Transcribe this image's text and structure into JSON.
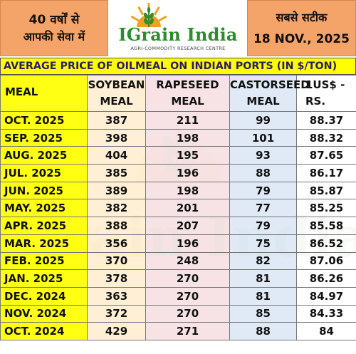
{
  "header": {
    "left_line1": "40 वर्षों से",
    "left_line2": "आपकी सेवा में",
    "logo_name": "IGrain India",
    "logo_tagline": "AGRI-COMMODITY RESEARCH CENTRE",
    "right_line1": "सबसे सटीक",
    "right_line2": "18 NOV., 2025"
  },
  "title": "AVERAGE PRICE OF OILMEAL ON INDIAN PORTS (IN $/TON)",
  "watermark_text": "IGrain India",
  "columns": [
    [
      "MEAL",
      ""
    ],
    [
      "SOYBEAN",
      "MEAL"
    ],
    [
      "RAPESEED",
      "MEAL"
    ],
    [
      "CASTORSEED",
      "MEAL"
    ],
    [
      "",
      "1US$ - RS."
    ]
  ],
  "rows": [
    [
      "OCT. 2025",
      "387",
      "211",
      "99",
      "88.37"
    ],
    [
      "SEP. 2025",
      "398",
      "198",
      "101",
      "88.32"
    ],
    [
      "AUG. 2025",
      "404",
      "195",
      "93",
      "87.65"
    ],
    [
      "JUL. 2025",
      "385",
      "196",
      "88",
      "86.17"
    ],
    [
      "JUN. 2025",
      "389",
      "198",
      "79",
      "85.87"
    ],
    [
      "MAY. 2025",
      "382",
      "201",
      "77",
      "85.25"
    ],
    [
      "APR. 2025",
      "388",
      "207",
      "79",
      "85.58"
    ],
    [
      "MAR. 2025",
      "356",
      "196",
      "75",
      "86.52"
    ],
    [
      "FEB. 2025",
      "370",
      "248",
      "82",
      "87.06"
    ],
    [
      "JAN. 2025",
      "378",
      "270",
      "81",
      "86.26"
    ],
    [
      "DEC. 2024",
      "363",
      "270",
      "81",
      "84.97"
    ],
    [
      "NOV. 2024",
      "372",
      "270",
      "85",
      "84.33"
    ],
    [
      "OCT. 2024",
      "429",
      "271",
      "88",
      "84"
    ]
  ],
  "colors": {
    "header_orange": "#f5a469",
    "title_yellow": "#ffff00",
    "title_text": "#2a1a6e",
    "logo_green": "#2e8b2e",
    "sun_orange": "#f0a020"
  }
}
